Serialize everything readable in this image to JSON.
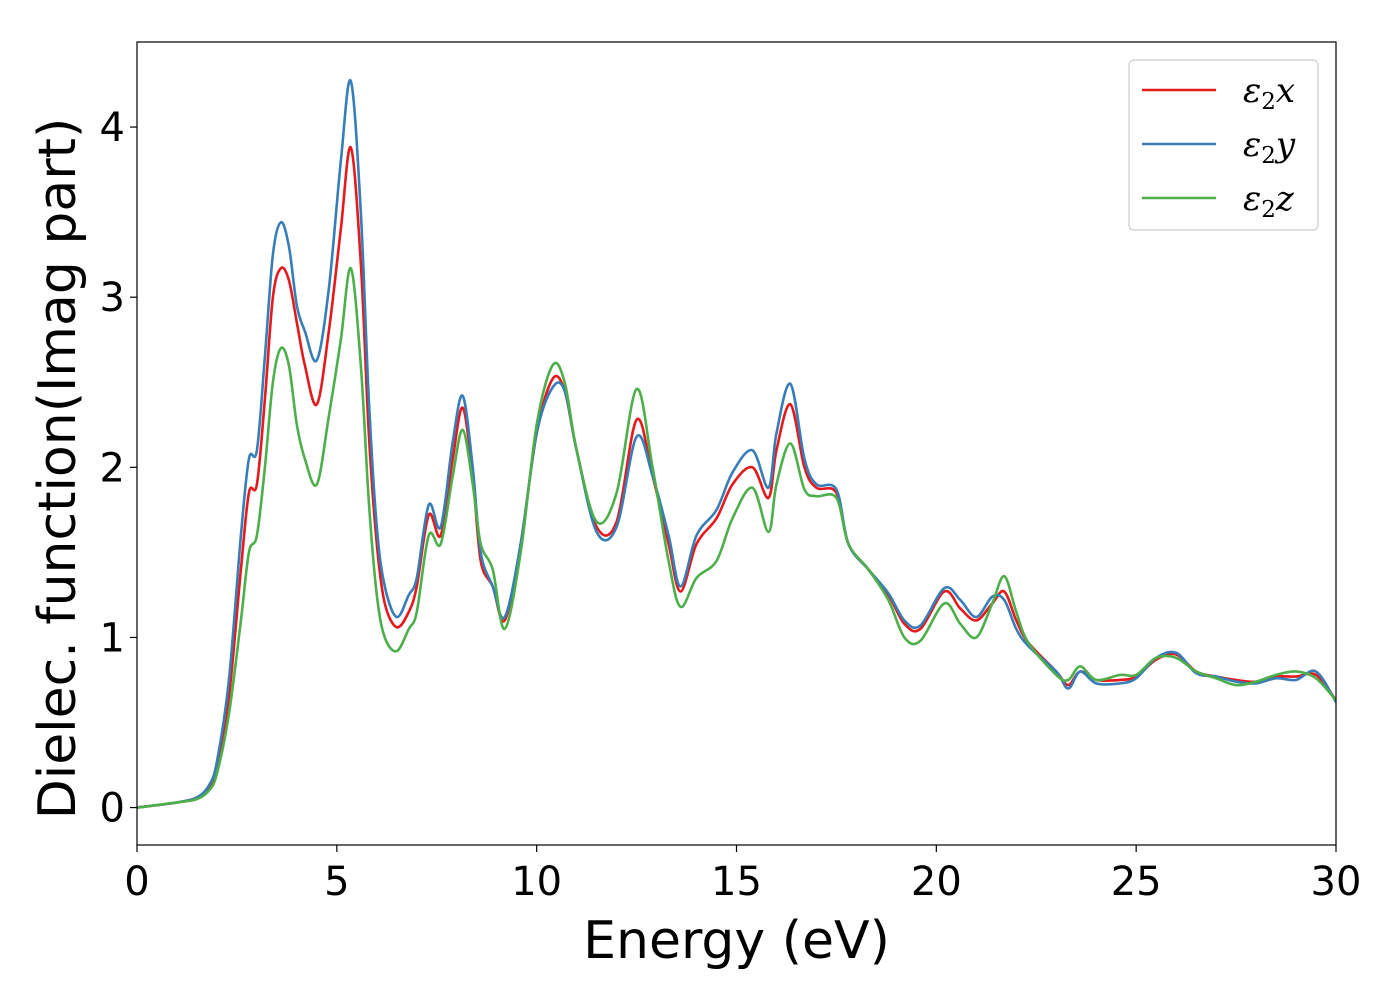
{
  "chart_data": {
    "type": "line",
    "title": "",
    "xlabel": "Energy (eV)",
    "ylabel": "Dielec. function(Imag part)",
    "xlim": [
      0,
      30
    ],
    "ylim": [
      -0.22,
      4.5
    ],
    "xticks": [
      0,
      5,
      10,
      15,
      20,
      25,
      30
    ],
    "yticks": [
      0,
      1,
      2,
      3,
      4
    ],
    "grid": false,
    "legend_position": "top-right",
    "series": [
      {
        "name": "ε₂x",
        "label_main": "ε",
        "label_sub": "2",
        "label_tail": "x",
        "color": "#e41a1c",
        "points": [
          [
            0,
            0
          ],
          [
            1,
            0.03
          ],
          [
            1.5,
            0.06
          ],
          [
            1.8,
            0.12
          ],
          [
            2.0,
            0.25
          ],
          [
            2.3,
            0.65
          ],
          [
            2.6,
            1.4
          ],
          [
            2.8,
            1.85
          ],
          [
            3.0,
            1.9
          ],
          [
            3.2,
            2.4
          ],
          [
            3.4,
            3.0
          ],
          [
            3.6,
            3.17
          ],
          [
            3.8,
            3.1
          ],
          [
            4.0,
            2.85
          ],
          [
            4.2,
            2.6
          ],
          [
            4.5,
            2.37
          ],
          [
            4.8,
            2.8
          ],
          [
            5.1,
            3.4
          ],
          [
            5.35,
            3.88
          ],
          [
            5.6,
            3.2
          ],
          [
            5.8,
            2.2
          ],
          [
            6.0,
            1.55
          ],
          [
            6.2,
            1.2
          ],
          [
            6.5,
            1.06
          ],
          [
            6.8,
            1.15
          ],
          [
            7.0,
            1.3
          ],
          [
            7.3,
            1.72
          ],
          [
            7.6,
            1.6
          ],
          [
            7.9,
            2.05
          ],
          [
            8.15,
            2.35
          ],
          [
            8.4,
            1.95
          ],
          [
            8.6,
            1.45
          ],
          [
            8.9,
            1.3
          ],
          [
            9.2,
            1.1
          ],
          [
            9.6,
            1.55
          ],
          [
            10.0,
            2.2
          ],
          [
            10.4,
            2.52
          ],
          [
            10.7,
            2.45
          ],
          [
            11.0,
            2.1
          ],
          [
            11.5,
            1.65
          ],
          [
            12.0,
            1.68
          ],
          [
            12.5,
            2.28
          ],
          [
            12.9,
            1.95
          ],
          [
            13.3,
            1.55
          ],
          [
            13.6,
            1.27
          ],
          [
            14.0,
            1.55
          ],
          [
            14.5,
            1.7
          ],
          [
            14.9,
            1.9
          ],
          [
            15.4,
            2.0
          ],
          [
            15.8,
            1.82
          ],
          [
            16.0,
            2.1
          ],
          [
            16.35,
            2.37
          ],
          [
            16.7,
            2.0
          ],
          [
            17.0,
            1.88
          ],
          [
            17.5,
            1.85
          ],
          [
            17.8,
            1.55
          ],
          [
            18.3,
            1.4
          ],
          [
            18.8,
            1.25
          ],
          [
            19.2,
            1.08
          ],
          [
            19.6,
            1.05
          ],
          [
            20.2,
            1.27
          ],
          [
            20.6,
            1.17
          ],
          [
            21.0,
            1.1
          ],
          [
            21.4,
            1.2
          ],
          [
            21.7,
            1.27
          ],
          [
            22.0,
            1.1
          ],
          [
            22.3,
            0.97
          ],
          [
            23.0,
            0.8
          ],
          [
            23.3,
            0.72
          ],
          [
            23.6,
            0.8
          ],
          [
            24.0,
            0.75
          ],
          [
            24.6,
            0.75
          ],
          [
            25.0,
            0.77
          ],
          [
            25.5,
            0.87
          ],
          [
            26.0,
            0.9
          ],
          [
            26.5,
            0.8
          ],
          [
            27.0,
            0.77
          ],
          [
            27.5,
            0.75
          ],
          [
            28.0,
            0.74
          ],
          [
            28.5,
            0.77
          ],
          [
            29.0,
            0.77
          ],
          [
            29.5,
            0.78
          ],
          [
            30.0,
            0.63
          ]
        ]
      },
      {
        "name": "ε₂y",
        "label_main": "ε",
        "label_sub": "2",
        "label_tail": "y",
        "color": "#377eb8",
        "points": [
          [
            0,
            0
          ],
          [
            1,
            0.03
          ],
          [
            1.5,
            0.06
          ],
          [
            1.8,
            0.13
          ],
          [
            2.0,
            0.27
          ],
          [
            2.3,
            0.75
          ],
          [
            2.6,
            1.6
          ],
          [
            2.8,
            2.05
          ],
          [
            3.0,
            2.1
          ],
          [
            3.2,
            2.65
          ],
          [
            3.4,
            3.25
          ],
          [
            3.6,
            3.44
          ],
          [
            3.8,
            3.3
          ],
          [
            4.0,
            2.95
          ],
          [
            4.2,
            2.8
          ],
          [
            4.5,
            2.63
          ],
          [
            4.8,
            3.05
          ],
          [
            5.1,
            3.8
          ],
          [
            5.35,
            4.27
          ],
          [
            5.6,
            3.5
          ],
          [
            5.8,
            2.4
          ],
          [
            6.0,
            1.65
          ],
          [
            6.2,
            1.3
          ],
          [
            6.5,
            1.12
          ],
          [
            6.8,
            1.25
          ],
          [
            7.0,
            1.35
          ],
          [
            7.3,
            1.78
          ],
          [
            7.6,
            1.65
          ],
          [
            7.9,
            2.15
          ],
          [
            8.15,
            2.42
          ],
          [
            8.4,
            2.0
          ],
          [
            8.6,
            1.5
          ],
          [
            8.9,
            1.3
          ],
          [
            9.2,
            1.12
          ],
          [
            9.6,
            1.55
          ],
          [
            10.0,
            2.2
          ],
          [
            10.4,
            2.47
          ],
          [
            10.7,
            2.45
          ],
          [
            11.0,
            2.1
          ],
          [
            11.5,
            1.62
          ],
          [
            12.0,
            1.65
          ],
          [
            12.5,
            2.18
          ],
          [
            12.9,
            1.95
          ],
          [
            13.3,
            1.6
          ],
          [
            13.6,
            1.3
          ],
          [
            14.0,
            1.6
          ],
          [
            14.5,
            1.75
          ],
          [
            14.9,
            1.97
          ],
          [
            15.4,
            2.1
          ],
          [
            15.8,
            1.88
          ],
          [
            16.0,
            2.2
          ],
          [
            16.35,
            2.49
          ],
          [
            16.7,
            2.05
          ],
          [
            17.0,
            1.9
          ],
          [
            17.5,
            1.87
          ],
          [
            17.8,
            1.55
          ],
          [
            18.3,
            1.4
          ],
          [
            18.8,
            1.26
          ],
          [
            19.2,
            1.1
          ],
          [
            19.6,
            1.07
          ],
          [
            20.2,
            1.29
          ],
          [
            20.6,
            1.22
          ],
          [
            21.0,
            1.12
          ],
          [
            21.4,
            1.24
          ],
          [
            21.7,
            1.22
          ],
          [
            22.0,
            1.05
          ],
          [
            22.3,
            0.95
          ],
          [
            23.0,
            0.8
          ],
          [
            23.3,
            0.7
          ],
          [
            23.6,
            0.8
          ],
          [
            24.0,
            0.73
          ],
          [
            24.6,
            0.73
          ],
          [
            25.0,
            0.76
          ],
          [
            25.5,
            0.88
          ],
          [
            26.0,
            0.91
          ],
          [
            26.5,
            0.79
          ],
          [
            27.0,
            0.77
          ],
          [
            27.5,
            0.74
          ],
          [
            28.0,
            0.73
          ],
          [
            28.5,
            0.76
          ],
          [
            29.0,
            0.75
          ],
          [
            29.5,
            0.8
          ],
          [
            30.0,
            0.62
          ]
        ]
      },
      {
        "name": "ε₂z",
        "label_main": "ε",
        "label_sub": "2",
        "label_tail": "z",
        "color": "#4daf4a",
        "points": [
          [
            0,
            0
          ],
          [
            1,
            0.03
          ],
          [
            1.5,
            0.05
          ],
          [
            1.8,
            0.1
          ],
          [
            2.0,
            0.2
          ],
          [
            2.3,
            0.55
          ],
          [
            2.6,
            1.1
          ],
          [
            2.8,
            1.5
          ],
          [
            3.0,
            1.6
          ],
          [
            3.2,
            2.0
          ],
          [
            3.4,
            2.5
          ],
          [
            3.6,
            2.7
          ],
          [
            3.8,
            2.6
          ],
          [
            4.0,
            2.25
          ],
          [
            4.2,
            2.05
          ],
          [
            4.5,
            1.9
          ],
          [
            4.8,
            2.3
          ],
          [
            5.1,
            2.75
          ],
          [
            5.35,
            3.17
          ],
          [
            5.6,
            2.6
          ],
          [
            5.8,
            1.8
          ],
          [
            6.0,
            1.25
          ],
          [
            6.2,
            1.0
          ],
          [
            6.5,
            0.92
          ],
          [
            6.8,
            1.05
          ],
          [
            7.0,
            1.15
          ],
          [
            7.3,
            1.6
          ],
          [
            7.6,
            1.55
          ],
          [
            7.9,
            1.95
          ],
          [
            8.15,
            2.22
          ],
          [
            8.4,
            1.9
          ],
          [
            8.6,
            1.55
          ],
          [
            8.9,
            1.4
          ],
          [
            9.2,
            1.05
          ],
          [
            9.6,
            1.5
          ],
          [
            10.0,
            2.25
          ],
          [
            10.4,
            2.6
          ],
          [
            10.7,
            2.5
          ],
          [
            11.0,
            2.1
          ],
          [
            11.5,
            1.68
          ],
          [
            12.0,
            1.85
          ],
          [
            12.5,
            2.46
          ],
          [
            12.9,
            2.0
          ],
          [
            13.3,
            1.45
          ],
          [
            13.6,
            1.18
          ],
          [
            14.0,
            1.35
          ],
          [
            14.5,
            1.45
          ],
          [
            14.9,
            1.7
          ],
          [
            15.4,
            1.88
          ],
          [
            15.8,
            1.62
          ],
          [
            16.0,
            1.9
          ],
          [
            16.35,
            2.14
          ],
          [
            16.7,
            1.87
          ],
          [
            17.0,
            1.83
          ],
          [
            17.5,
            1.82
          ],
          [
            17.8,
            1.55
          ],
          [
            18.3,
            1.4
          ],
          [
            18.8,
            1.22
          ],
          [
            19.2,
            1.0
          ],
          [
            19.6,
            0.98
          ],
          [
            20.2,
            1.2
          ],
          [
            20.6,
            1.08
          ],
          [
            21.0,
            1.0
          ],
          [
            21.4,
            1.2
          ],
          [
            21.7,
            1.36
          ],
          [
            22.0,
            1.15
          ],
          [
            22.3,
            0.97
          ],
          [
            23.0,
            0.78
          ],
          [
            23.3,
            0.75
          ],
          [
            23.6,
            0.83
          ],
          [
            24.0,
            0.75
          ],
          [
            24.6,
            0.78
          ],
          [
            25.0,
            0.78
          ],
          [
            25.5,
            0.88
          ],
          [
            26.0,
            0.88
          ],
          [
            26.5,
            0.8
          ],
          [
            27.0,
            0.76
          ],
          [
            27.5,
            0.72
          ],
          [
            28.0,
            0.74
          ],
          [
            28.5,
            0.78
          ],
          [
            29.0,
            0.8
          ],
          [
            29.5,
            0.76
          ],
          [
            30.0,
            0.63
          ]
        ]
      }
    ]
  }
}
